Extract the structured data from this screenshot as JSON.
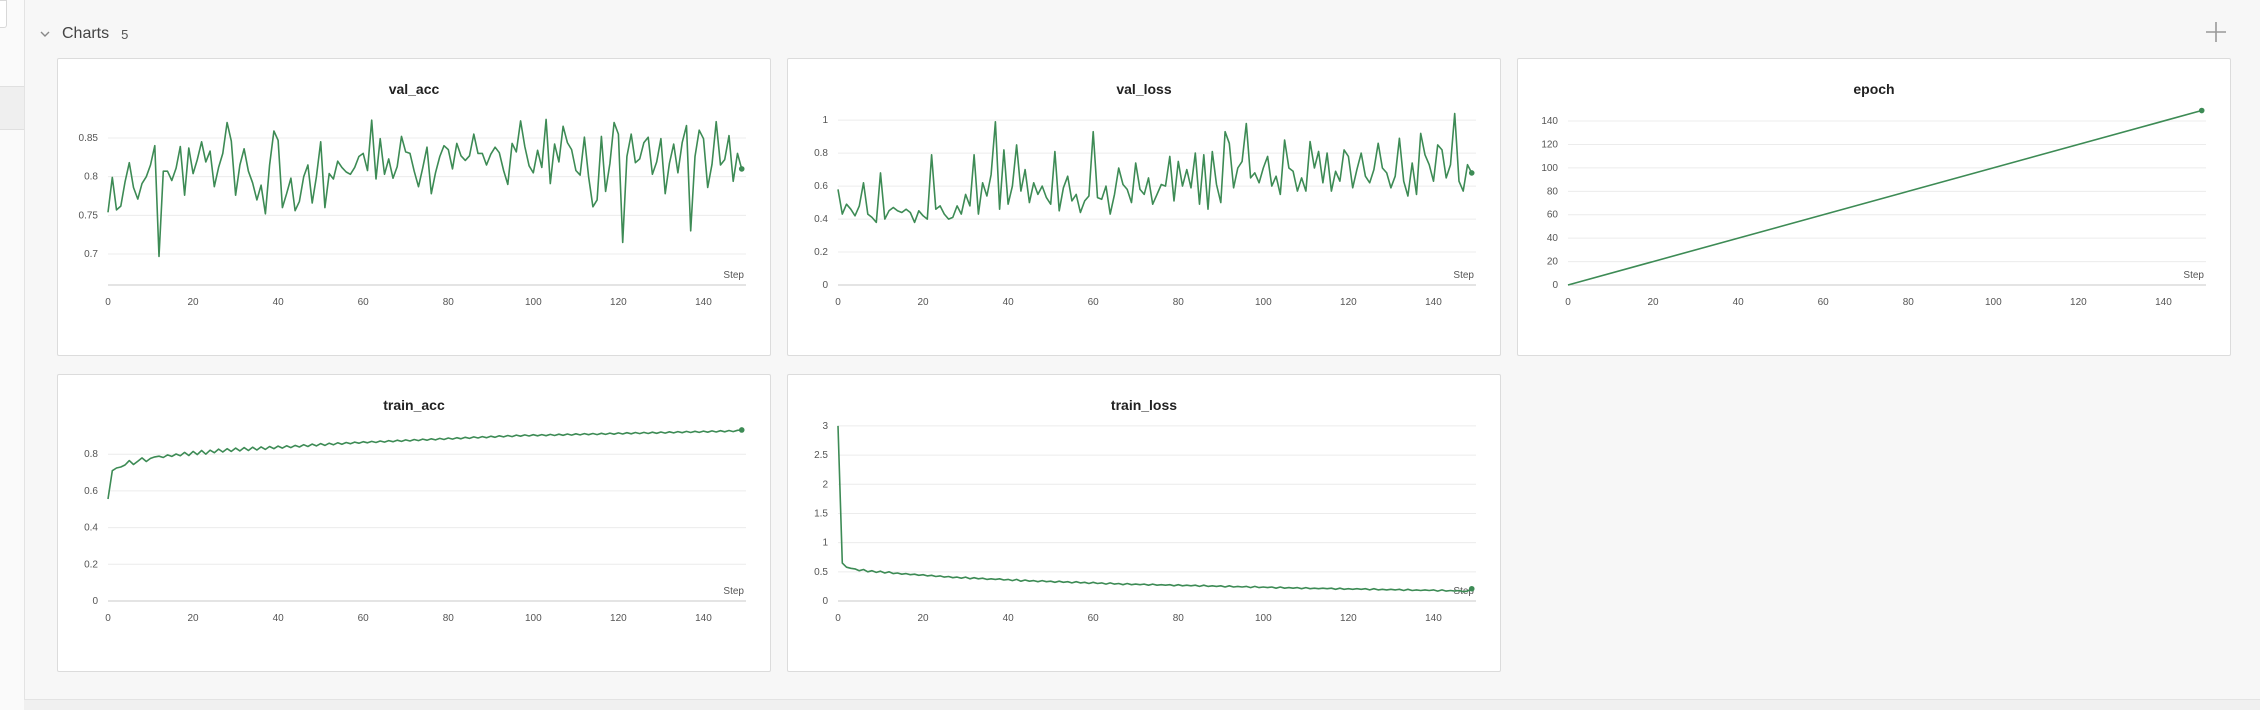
{
  "section": {
    "title": "Charts",
    "count": "5"
  },
  "colors": {
    "line": "#3d8b55",
    "grid": "#ececec",
    "axis": "#c8c8c8"
  },
  "icons": {
    "collapse": "chevron-down-icon",
    "add": "plus-icon"
  },
  "chart_data": [
    {
      "id": "val_acc",
      "type": "line",
      "title": "val_acc",
      "xlabel": "Step",
      "xlim": [
        0,
        150
      ],
      "ylim": [
        0.66,
        0.89
      ],
      "xticks": [
        0,
        20,
        40,
        60,
        80,
        100,
        120,
        140
      ],
      "yticks": [
        0.7,
        0.75,
        0.8,
        0.85
      ],
      "ytick_labels": [
        "0.7",
        "0.75",
        "0.8",
        "0.85"
      ],
      "x": [
        0,
        1,
        2,
        3,
        4,
        5,
        6,
        7,
        8,
        9,
        10,
        11,
        12,
        13,
        14,
        15,
        16,
        17,
        18,
        19,
        20,
        21,
        22,
        23,
        24,
        25,
        26,
        27,
        28,
        29,
        30,
        31,
        32,
        33,
        34,
        35,
        36,
        37,
        38,
        39,
        40,
        41,
        42,
        43,
        44,
        45,
        46,
        47,
        48,
        49,
        50,
        51,
        52,
        53,
        54,
        55,
        56,
        57,
        58,
        59,
        60,
        61,
        62,
        63,
        64,
        65,
        66,
        67,
        68,
        69,
        70,
        71,
        72,
        73,
        74,
        75,
        76,
        77,
        78,
        79,
        80,
        81,
        82,
        83,
        84,
        85,
        86,
        87,
        88,
        89,
        90,
        91,
        92,
        93,
        94,
        95,
        96,
        97,
        98,
        99,
        100,
        101,
        102,
        103,
        104,
        105,
        106,
        107,
        108,
        109,
        110,
        111,
        112,
        113,
        114,
        115,
        116,
        117,
        118,
        119,
        120,
        121,
        122,
        123,
        124,
        125,
        126,
        127,
        128,
        129,
        130,
        131,
        132,
        133,
        134,
        135,
        136,
        137,
        138,
        139,
        140,
        141,
        142,
        143,
        144,
        145,
        146,
        147,
        148,
        149
      ],
      "y": [
        0.754,
        0.799,
        0.757,
        0.762,
        0.793,
        0.818,
        0.786,
        0.771,
        0.791,
        0.8,
        0.815,
        0.84,
        0.697,
        0.807,
        0.807,
        0.795,
        0.811,
        0.839,
        0.776,
        0.837,
        0.804,
        0.822,
        0.845,
        0.819,
        0.833,
        0.787,
        0.812,
        0.83,
        0.87,
        0.846,
        0.776,
        0.815,
        0.836,
        0.807,
        0.792,
        0.77,
        0.789,
        0.752,
        0.815,
        0.859,
        0.847,
        0.76,
        0.778,
        0.798,
        0.756,
        0.768,
        0.8,
        0.815,
        0.766,
        0.8,
        0.845,
        0.76,
        0.804,
        0.797,
        0.82,
        0.812,
        0.806,
        0.803,
        0.812,
        0.826,
        0.83,
        0.808,
        0.873,
        0.797,
        0.849,
        0.803,
        0.823,
        0.798,
        0.813,
        0.852,
        0.832,
        0.83,
        0.807,
        0.787,
        0.811,
        0.838,
        0.778,
        0.805,
        0.826,
        0.84,
        0.835,
        0.81,
        0.843,
        0.827,
        0.821,
        0.827,
        0.855,
        0.83,
        0.83,
        0.815,
        0.829,
        0.838,
        0.831,
        0.808,
        0.79,
        0.843,
        0.832,
        0.872,
        0.839,
        0.814,
        0.805,
        0.834,
        0.812,
        0.874,
        0.791,
        0.842,
        0.819,
        0.865,
        0.844,
        0.835,
        0.808,
        0.802,
        0.851,
        0.8,
        0.761,
        0.77,
        0.852,
        0.781,
        0.817,
        0.87,
        0.855,
        0.715,
        0.826,
        0.855,
        0.818,
        0.823,
        0.844,
        0.851,
        0.803,
        0.819,
        0.849,
        0.778,
        0.817,
        0.842,
        0.805,
        0.844,
        0.866,
        0.73,
        0.826,
        0.86,
        0.849,
        0.786,
        0.816,
        0.871,
        0.815,
        0.822,
        0.853,
        0.794,
        0.83,
        0.81
      ],
      "endpoint_marker": true
    },
    {
      "id": "val_loss",
      "type": "line",
      "title": "val_loss",
      "xlabel": "Step",
      "xlim": [
        0,
        150
      ],
      "ylim": [
        0,
        1.08
      ],
      "xticks": [
        0,
        20,
        40,
        60,
        80,
        100,
        120,
        140
      ],
      "yticks": [
        0,
        0.2,
        0.4,
        0.6,
        0.8,
        1
      ],
      "ytick_labels": [
        "0",
        "0.2",
        "0.4",
        "0.6",
        "0.8",
        "1"
      ],
      "x": [
        0,
        1,
        2,
        3,
        4,
        5,
        6,
        7,
        8,
        9,
        10,
        11,
        12,
        13,
        14,
        15,
        16,
        17,
        18,
        19,
        20,
        21,
        22,
        23,
        24,
        25,
        26,
        27,
        28,
        29,
        30,
        31,
        32,
        33,
        34,
        35,
        36,
        37,
        38,
        39,
        40,
        41,
        42,
        43,
        44,
        45,
        46,
        47,
        48,
        49,
        50,
        51,
        52,
        53,
        54,
        55,
        56,
        57,
        58,
        59,
        60,
        61,
        62,
        63,
        64,
        65,
        66,
        67,
        68,
        69,
        70,
        71,
        72,
        73,
        74,
        75,
        76,
        77,
        78,
        79,
        80,
        81,
        82,
        83,
        84,
        85,
        86,
        87,
        88,
        89,
        90,
        91,
        92,
        93,
        94,
        95,
        96,
        97,
        98,
        99,
        100,
        101,
        102,
        103,
        104,
        105,
        106,
        107,
        108,
        109,
        110,
        111,
        112,
        113,
        114,
        115,
        116,
        117,
        118,
        119,
        120,
        121,
        122,
        123,
        124,
        125,
        126,
        127,
        128,
        129,
        130,
        131,
        132,
        133,
        134,
        135,
        136,
        137,
        138,
        139,
        140,
        141,
        142,
        143,
        144,
        145,
        146,
        147,
        148,
        149
      ],
      "y": [
        0.58,
        0.43,
        0.49,
        0.46,
        0.42,
        0.48,
        0.62,
        0.43,
        0.41,
        0.38,
        0.68,
        0.4,
        0.45,
        0.47,
        0.45,
        0.44,
        0.46,
        0.44,
        0.38,
        0.45,
        0.42,
        0.4,
        0.79,
        0.46,
        0.48,
        0.43,
        0.4,
        0.41,
        0.48,
        0.43,
        0.55,
        0.48,
        0.79,
        0.43,
        0.62,
        0.54,
        0.67,
        0.99,
        0.46,
        0.82,
        0.49,
        0.6,
        0.85,
        0.57,
        0.7,
        0.5,
        0.62,
        0.55,
        0.6,
        0.53,
        0.49,
        0.81,
        0.45,
        0.59,
        0.66,
        0.51,
        0.55,
        0.44,
        0.51,
        0.54,
        0.93,
        0.53,
        0.52,
        0.6,
        0.43,
        0.55,
        0.71,
        0.61,
        0.58,
        0.5,
        0.74,
        0.58,
        0.55,
        0.65,
        0.49,
        0.55,
        0.61,
        0.6,
        0.78,
        0.51,
        0.75,
        0.6,
        0.7,
        0.59,
        0.8,
        0.49,
        0.79,
        0.46,
        0.81,
        0.61,
        0.5,
        0.93,
        0.86,
        0.59,
        0.71,
        0.75,
        0.98,
        0.65,
        0.68,
        0.62,
        0.71,
        0.78,
        0.6,
        0.66,
        0.55,
        0.88,
        0.71,
        0.69,
        0.57,
        0.65,
        0.57,
        0.87,
        0.71,
        0.81,
        0.62,
        0.8,
        0.57,
        0.69,
        0.63,
        0.82,
        0.78,
        0.59,
        0.7,
        0.8,
        0.66,
        0.62,
        0.7,
        0.86,
        0.71,
        0.68,
        0.59,
        0.66,
        0.89,
        0.63,
        0.54,
        0.74,
        0.55,
        0.92,
        0.79,
        0.73,
        0.63,
        0.85,
        0.82,
        0.65,
        0.73,
        1.04,
        0.63,
        0.57,
        0.73,
        0.68
      ],
      "endpoint_marker": true
    },
    {
      "id": "epoch",
      "type": "line",
      "title": "epoch",
      "xlabel": "Step",
      "xlim": [
        0,
        150
      ],
      "ylim": [
        0,
        152
      ],
      "xticks": [
        0,
        20,
        40,
        60,
        80,
        100,
        120,
        140
      ],
      "yticks": [
        0,
        20,
        40,
        60,
        80,
        100,
        120,
        140
      ],
      "ytick_labels": [
        "0",
        "20",
        "40",
        "60",
        "80",
        "100",
        "120",
        "140"
      ],
      "x": [
        0,
        149
      ],
      "y": [
        0,
        149
      ],
      "endpoint_marker": true
    },
    {
      "id": "train_acc",
      "type": "line",
      "title": "train_acc",
      "xlabel": "Step",
      "xlim": [
        0,
        150
      ],
      "ylim": [
        0,
        0.97
      ],
      "xticks": [
        0,
        20,
        40,
        60,
        80,
        100,
        120,
        140
      ],
      "yticks": [
        0,
        0.2,
        0.4,
        0.6,
        0.8
      ],
      "ytick_labels": [
        "0",
        "0.2",
        "0.4",
        "0.6",
        "0.8"
      ],
      "x": [
        0,
        1,
        2,
        3,
        4,
        5,
        6,
        7,
        8,
        9,
        10,
        11,
        12,
        13,
        14,
        15,
        16,
        17,
        18,
        19,
        20,
        21,
        22,
        23,
        24,
        25,
        26,
        27,
        28,
        29,
        30,
        31,
        32,
        33,
        34,
        35,
        36,
        37,
        38,
        39,
        40,
        41,
        42,
        43,
        44,
        45,
        46,
        47,
        48,
        49,
        50,
        51,
        52,
        53,
        54,
        55,
        56,
        57,
        58,
        59,
        60,
        61,
        62,
        63,
        64,
        65,
        66,
        67,
        68,
        69,
        70,
        71,
        72,
        73,
        74,
        75,
        76,
        77,
        78,
        79,
        80,
        81,
        82,
        83,
        84,
        85,
        86,
        87,
        88,
        89,
        90,
        91,
        92,
        93,
        94,
        95,
        96,
        97,
        98,
        99,
        100,
        101,
        102,
        103,
        104,
        105,
        106,
        107,
        108,
        109,
        110,
        111,
        112,
        113,
        114,
        115,
        116,
        117,
        118,
        119,
        120,
        121,
        122,
        123,
        124,
        125,
        126,
        127,
        128,
        129,
        130,
        131,
        132,
        133,
        134,
        135,
        136,
        137,
        138,
        139,
        140,
        141,
        142,
        143,
        144,
        145,
        146,
        147,
        148,
        149
      ],
      "y": [
        0.556,
        0.71,
        0.725,
        0.73,
        0.741,
        0.765,
        0.744,
        0.762,
        0.78,
        0.76,
        0.777,
        0.785,
        0.789,
        0.782,
        0.796,
        0.788,
        0.801,
        0.792,
        0.81,
        0.793,
        0.815,
        0.798,
        0.82,
        0.8,
        0.822,
        0.808,
        0.828,
        0.812,
        0.83,
        0.815,
        0.833,
        0.818,
        0.836,
        0.82,
        0.838,
        0.823,
        0.84,
        0.826,
        0.842,
        0.83,
        0.844,
        0.833,
        0.846,
        0.836,
        0.848,
        0.839,
        0.852,
        0.842,
        0.855,
        0.845,
        0.858,
        0.848,
        0.86,
        0.851,
        0.862,
        0.854,
        0.864,
        0.857,
        0.866,
        0.86,
        0.868,
        0.862,
        0.87,
        0.864,
        0.872,
        0.866,
        0.874,
        0.868,
        0.876,
        0.87,
        0.878,
        0.872,
        0.88,
        0.874,
        0.882,
        0.876,
        0.884,
        0.878,
        0.886,
        0.88,
        0.888,
        0.882,
        0.89,
        0.884,
        0.892,
        0.886,
        0.894,
        0.888,
        0.896,
        0.89,
        0.898,
        0.892,
        0.9,
        0.894,
        0.902,
        0.896,
        0.904,
        0.898,
        0.905,
        0.899,
        0.906,
        0.9,
        0.907,
        0.901,
        0.908,
        0.902,
        0.909,
        0.903,
        0.91,
        0.904,
        0.911,
        0.905,
        0.912,
        0.906,
        0.913,
        0.907,
        0.914,
        0.908,
        0.915,
        0.909,
        0.916,
        0.91,
        0.917,
        0.911,
        0.918,
        0.912,
        0.919,
        0.913,
        0.92,
        0.914,
        0.921,
        0.915,
        0.922,
        0.916,
        0.923,
        0.917,
        0.924,
        0.918,
        0.925,
        0.919,
        0.926,
        0.92,
        0.927,
        0.921,
        0.928,
        0.922,
        0.929,
        0.923,
        0.93,
        0.932
      ],
      "endpoint_marker": true
    },
    {
      "id": "train_loss",
      "type": "line",
      "title": "train_loss",
      "xlabel": "Step",
      "xlim": [
        0,
        150
      ],
      "ylim": [
        0,
        3.05
      ],
      "xticks": [
        0,
        20,
        40,
        60,
        80,
        100,
        120,
        140
      ],
      "yticks": [
        0,
        0.5,
        1,
        1.5,
        2,
        2.5,
        3
      ],
      "ytick_labels": [
        "0",
        "0.5",
        "1",
        "1.5",
        "2",
        "2.5",
        "3"
      ],
      "x": [
        0,
        1,
        2,
        3,
        4,
        5,
        6,
        7,
        8,
        9,
        10,
        11,
        12,
        13,
        14,
        15,
        16,
        17,
        18,
        19,
        20,
        21,
        22,
        23,
        24,
        25,
        26,
        27,
        28,
        29,
        30,
        31,
        32,
        33,
        34,
        35,
        36,
        37,
        38,
        39,
        40,
        41,
        42,
        43,
        44,
        45,
        46,
        47,
        48,
        49,
        50,
        51,
        52,
        53,
        54,
        55,
        56,
        57,
        58,
        59,
        60,
        61,
        62,
        63,
        64,
        65,
        66,
        67,
        68,
        69,
        70,
        71,
        72,
        73,
        74,
        75,
        76,
        77,
        78,
        79,
        80,
        81,
        82,
        83,
        84,
        85,
        86,
        87,
        88,
        89,
        90,
        91,
        92,
        93,
        94,
        95,
        96,
        97,
        98,
        99,
        100,
        101,
        102,
        103,
        104,
        105,
        106,
        107,
        108,
        109,
        110,
        111,
        112,
        113,
        114,
        115,
        116,
        117,
        118,
        119,
        120,
        121,
        122,
        123,
        124,
        125,
        126,
        127,
        128,
        129,
        130,
        131,
        132,
        133,
        134,
        135,
        136,
        137,
        138,
        139,
        140,
        141,
        142,
        143,
        144,
        145,
        146,
        147,
        148,
        149
      ],
      "y": [
        3.0,
        0.65,
        0.58,
        0.56,
        0.55,
        0.52,
        0.54,
        0.5,
        0.52,
        0.49,
        0.51,
        0.48,
        0.5,
        0.47,
        0.48,
        0.46,
        0.47,
        0.45,
        0.46,
        0.44,
        0.45,
        0.43,
        0.44,
        0.42,
        0.43,
        0.41,
        0.42,
        0.4,
        0.41,
        0.39,
        0.41,
        0.38,
        0.4,
        0.38,
        0.39,
        0.37,
        0.38,
        0.37,
        0.38,
        0.36,
        0.37,
        0.35,
        0.37,
        0.34,
        0.36,
        0.34,
        0.35,
        0.33,
        0.35,
        0.33,
        0.34,
        0.32,
        0.34,
        0.32,
        0.33,
        0.31,
        0.33,
        0.31,
        0.32,
        0.3,
        0.32,
        0.3,
        0.31,
        0.29,
        0.31,
        0.29,
        0.3,
        0.28,
        0.3,
        0.28,
        0.29,
        0.28,
        0.29,
        0.27,
        0.29,
        0.27,
        0.28,
        0.27,
        0.28,
        0.26,
        0.28,
        0.26,
        0.27,
        0.26,
        0.27,
        0.25,
        0.27,
        0.25,
        0.26,
        0.25,
        0.26,
        0.24,
        0.26,
        0.24,
        0.25,
        0.24,
        0.25,
        0.23,
        0.25,
        0.23,
        0.24,
        0.23,
        0.24,
        0.22,
        0.24,
        0.22,
        0.23,
        0.22,
        0.23,
        0.21,
        0.23,
        0.21,
        0.22,
        0.21,
        0.22,
        0.21,
        0.22,
        0.2,
        0.22,
        0.2,
        0.21,
        0.2,
        0.21,
        0.2,
        0.21,
        0.19,
        0.21,
        0.19,
        0.2,
        0.19,
        0.2,
        0.19,
        0.2,
        0.18,
        0.2,
        0.18,
        0.19,
        0.18,
        0.19,
        0.18,
        0.19,
        0.17,
        0.19,
        0.17,
        0.18,
        0.17,
        0.18,
        0.16,
        0.17,
        0.21
      ],
      "endpoint_marker": true
    }
  ]
}
